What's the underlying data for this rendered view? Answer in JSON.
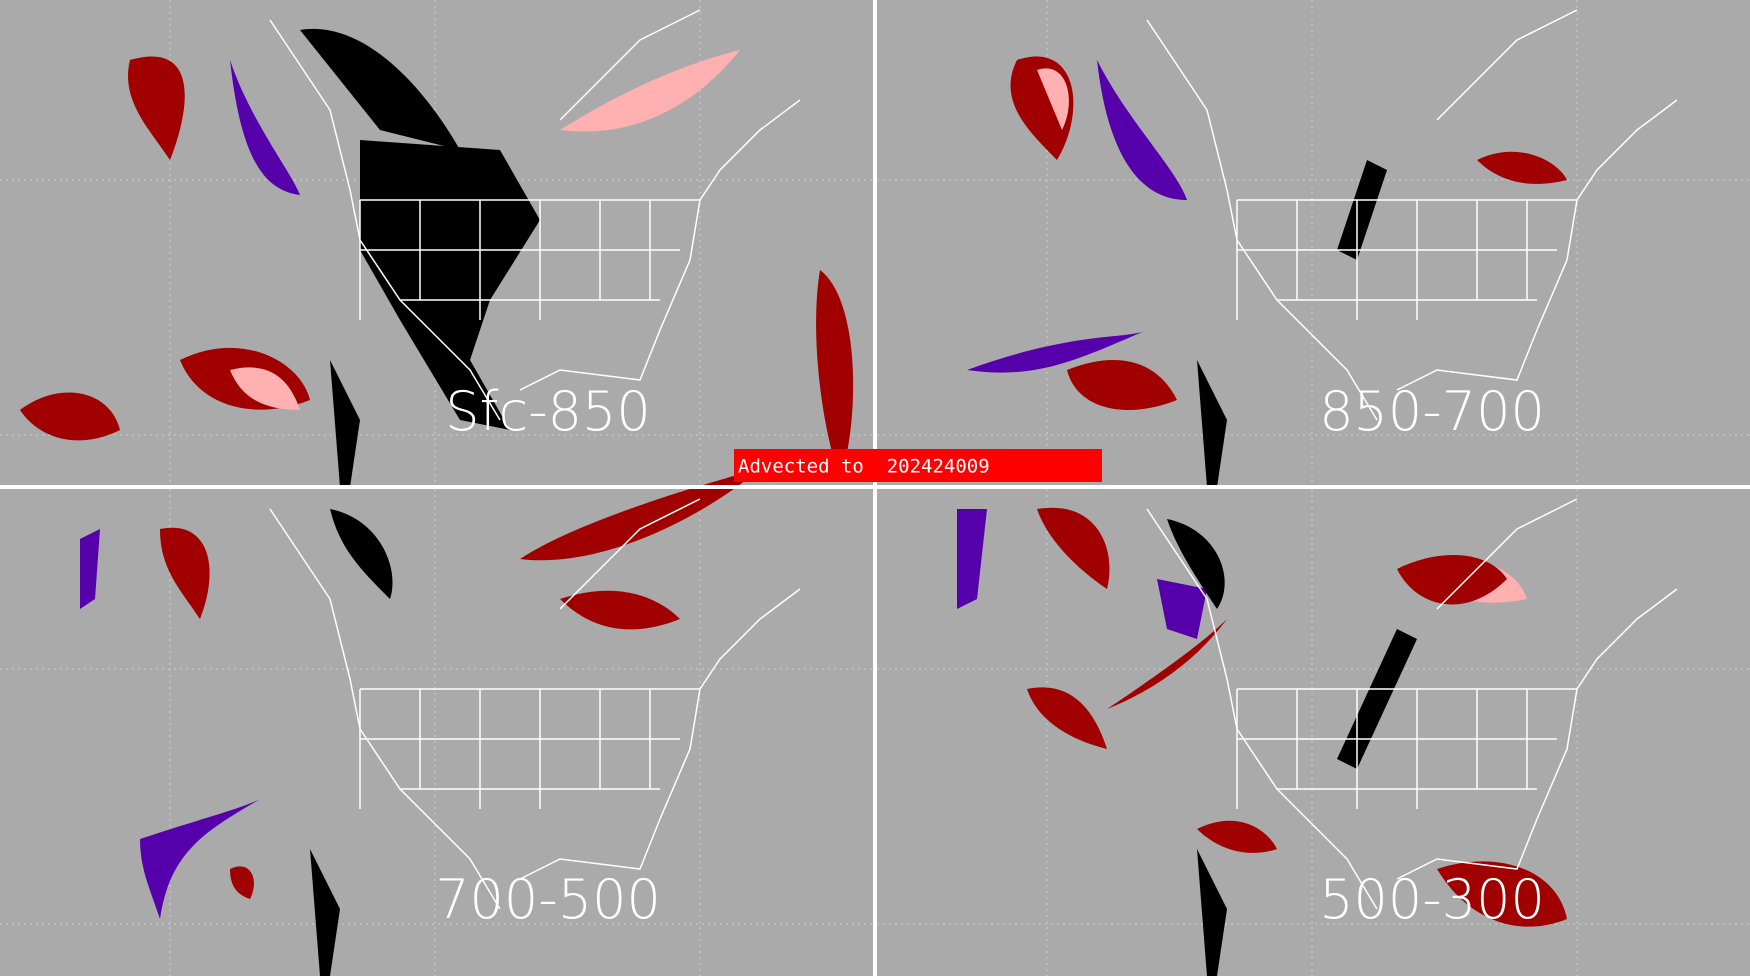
{
  "banner": "Advected to  202424009",
  "panels": [
    {
      "label": "Sfc-850"
    },
    {
      "label": "850-700"
    },
    {
      "label": "700-500"
    },
    {
      "label": "500-300"
    }
  ]
}
